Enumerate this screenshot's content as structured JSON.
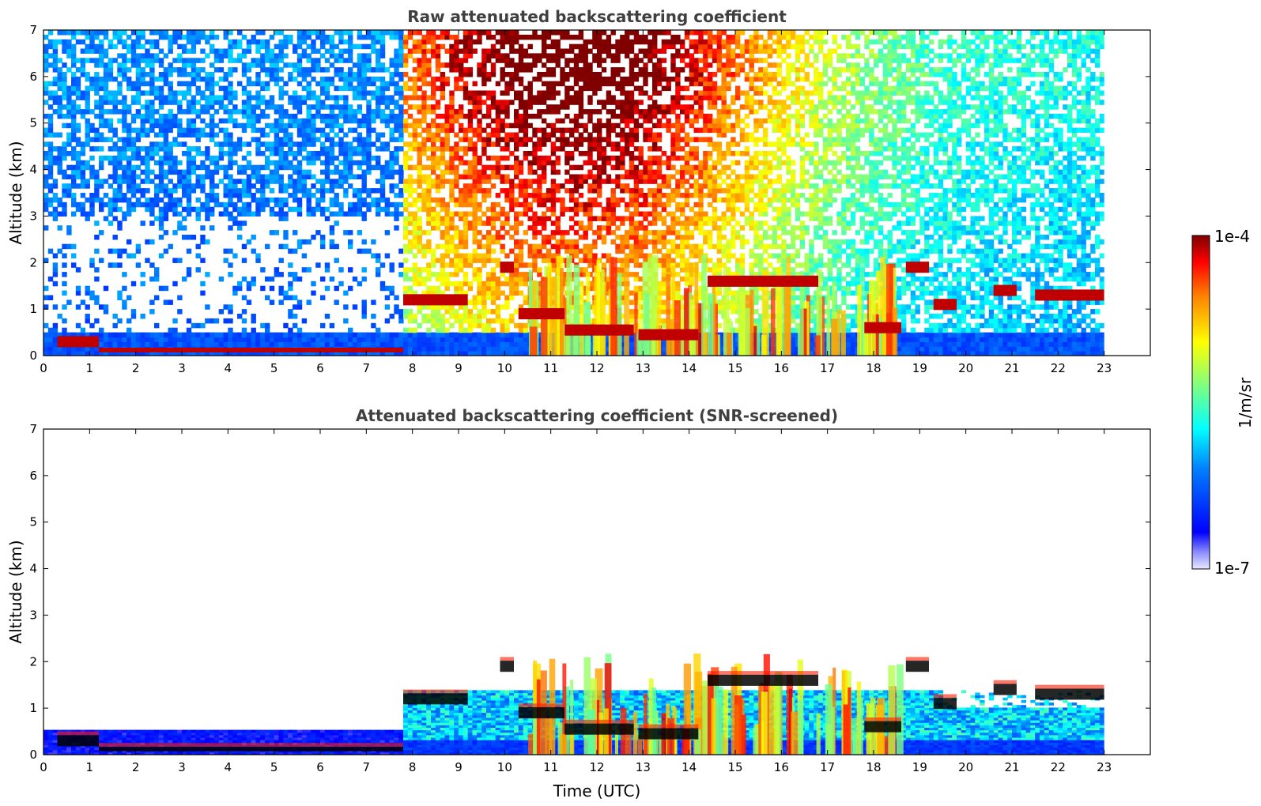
{
  "chart_data": [
    {
      "type": "heatmap",
      "title": "Raw attenuated backscattering coefficient",
      "xlabel": "",
      "ylabel": "Altitude (km)",
      "xlim": [
        0,
        24
      ],
      "ylim": [
        0,
        7
      ],
      "xticks": [
        "0",
        "1",
        "2",
        "3",
        "4",
        "5",
        "6",
        "7",
        "8",
        "9",
        "10",
        "11",
        "12",
        "13",
        "14",
        "15",
        "16",
        "17",
        "18",
        "19",
        "20",
        "21",
        "22",
        "23"
      ],
      "yticks": [
        "0",
        "1",
        "2",
        "3",
        "4",
        "5",
        "6",
        "7"
      ],
      "data_end_time": 23,
      "cloud_layers": [
        {
          "t0": 0.3,
          "t1": 1.2,
          "alt": 0.3
        },
        {
          "t0": 1.2,
          "t1": 7.8,
          "alt": 0.12
        },
        {
          "t0": 7.8,
          "t1": 9.2,
          "alt": 1.2
        },
        {
          "t0": 9.9,
          "t1": 10.2,
          "alt": 1.9
        },
        {
          "t0": 10.3,
          "t1": 11.3,
          "alt": 0.9
        },
        {
          "t0": 11.3,
          "t1": 12.8,
          "alt": 0.55
        },
        {
          "t0": 12.9,
          "t1": 14.2,
          "alt": 0.45
        },
        {
          "t0": 14.4,
          "t1": 16.8,
          "alt": 1.6
        },
        {
          "t0": 17.8,
          "t1": 18.6,
          "alt": 0.6
        },
        {
          "t0": 18.7,
          "t1": 19.2,
          "alt": 1.9
        },
        {
          "t0": 19.3,
          "t1": 19.8,
          "alt": 1.1
        },
        {
          "t0": 20.6,
          "t1": 21.1,
          "alt": 1.4
        },
        {
          "t0": 21.5,
          "t1": 23.0,
          "alt": 1.3
        }
      ]
    },
    {
      "type": "heatmap",
      "title": "Attenuated backscattering coefficient (SNR-screened)",
      "xlabel": "Time (UTC)",
      "ylabel": "Altitude (km)",
      "xlim": [
        0,
        24
      ],
      "ylim": [
        0,
        7
      ],
      "xticks": [
        "0",
        "1",
        "2",
        "3",
        "4",
        "5",
        "6",
        "7",
        "8",
        "9",
        "10",
        "11",
        "12",
        "13",
        "14",
        "15",
        "16",
        "17",
        "18",
        "19",
        "20",
        "21",
        "22",
        "23"
      ],
      "yticks": [
        "0",
        "1",
        "2",
        "3",
        "4",
        "5",
        "6",
        "7"
      ],
      "data_end_time": 23
    }
  ],
  "colorbar": {
    "label": "1/m/sr",
    "max_label": "1e-4",
    "min_label": "1e-7",
    "colormap": "jet",
    "scale": "log"
  }
}
